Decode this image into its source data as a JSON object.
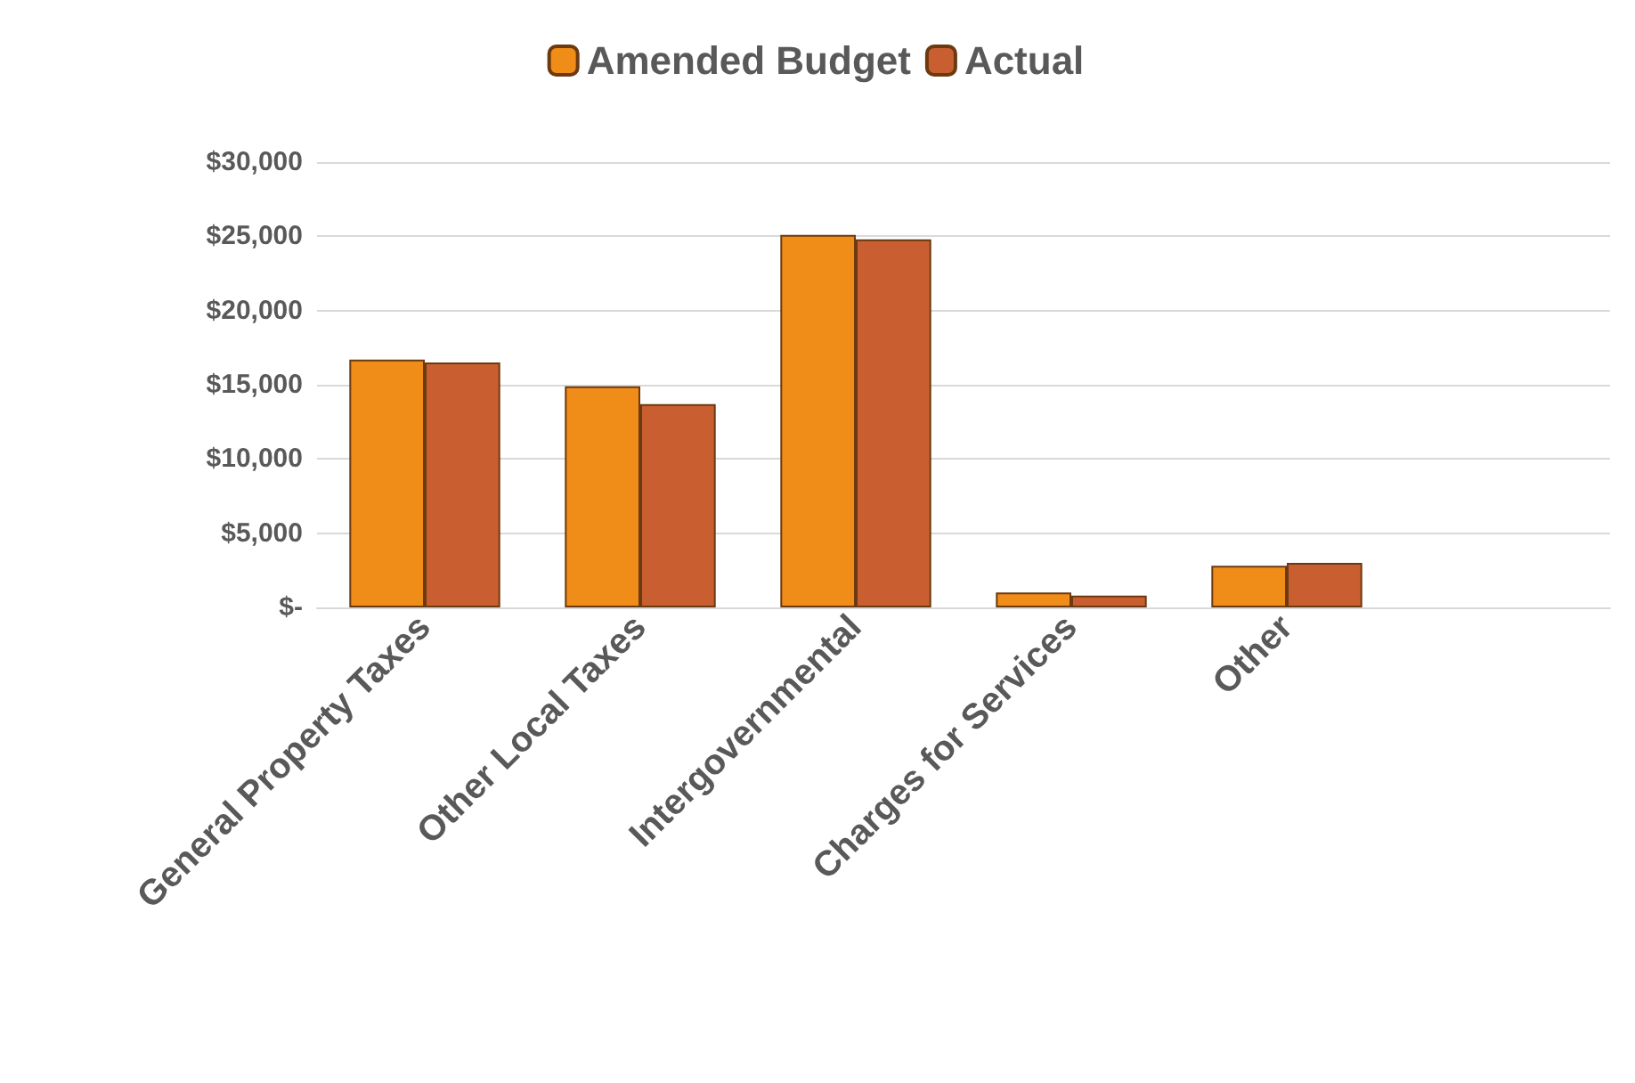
{
  "chart_data": {
    "type": "bar",
    "categories": [
      "General Property Taxes",
      "Other Local Taxes",
      "Intergovernmental",
      "Charges for Services",
      "Other",
      null
    ],
    "series": [
      {
        "name": "Amended Budget",
        "color": "#f08c18",
        "values": [
          16700,
          14900,
          25100,
          1000,
          2800,
          null
        ]
      },
      {
        "name": "Actual",
        "color": "#c95f30",
        "values": [
          16500,
          13700,
          24800,
          800,
          3000,
          null
        ]
      }
    ],
    "ylim": [
      0,
      30000
    ],
    "yticks": [
      {
        "value": 0,
        "label": "$-"
      },
      {
        "value": 5000,
        "label": "$5,000"
      },
      {
        "value": 10000,
        "label": "$10,000"
      },
      {
        "value": 15000,
        "label": "$15,000"
      },
      {
        "value": 20000,
        "label": "$20,000"
      },
      {
        "value": 25000,
        "label": "$25,000"
      },
      {
        "value": 30000,
        "label": "$30,000"
      }
    ],
    "grid": true,
    "legend": "top"
  }
}
